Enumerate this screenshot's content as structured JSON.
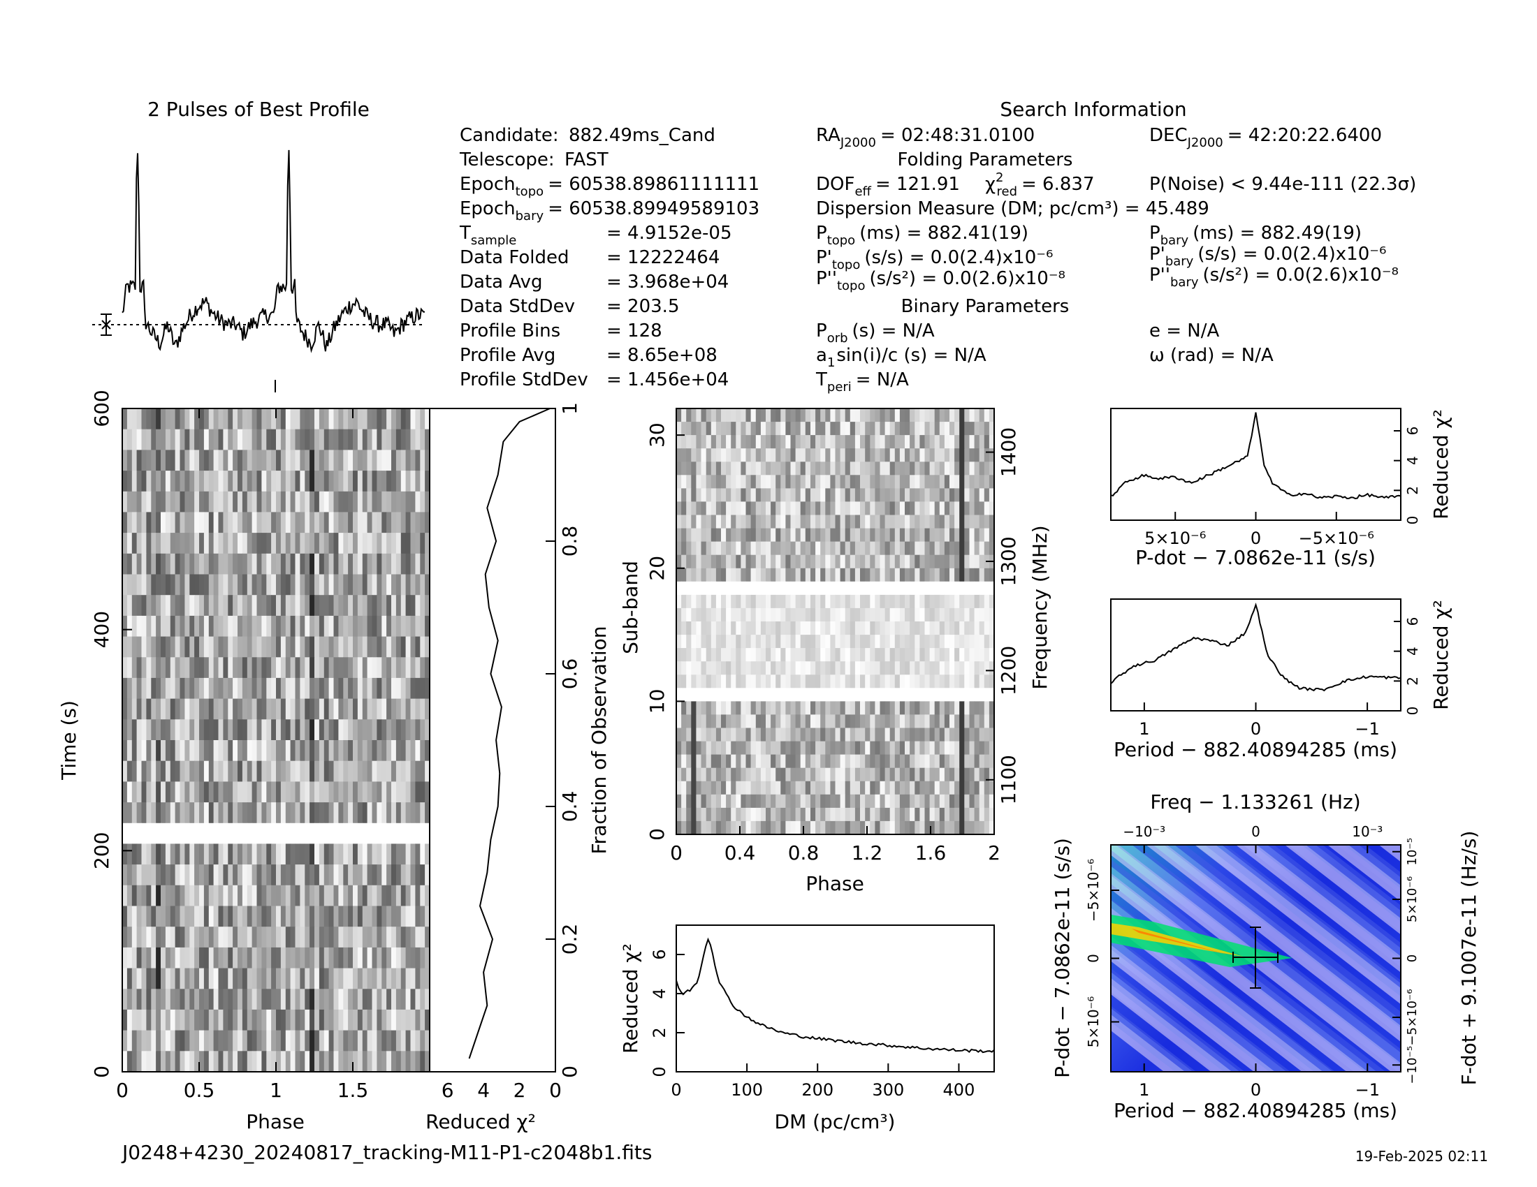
{
  "pulse_profile": {
    "title": "2 Pulses of Best Profile"
  },
  "search_info": {
    "title": "Search Information",
    "left_column": [
      {
        "label": "Candidate:",
        "value": "882.49ms_Cand"
      },
      {
        "label": "Telescope:",
        "value": "FAST"
      },
      {
        "label": "Epoch",
        "sub": "topo",
        "value": "= 60538.89861111111"
      },
      {
        "label": "Epoch",
        "sub": "bary",
        "value": "= 60538.89949589103"
      },
      {
        "label": "T",
        "sub": "sample",
        "value": "=   4.9152e-05"
      },
      {
        "label": "Data Folded",
        "value": "=   12222464"
      },
      {
        "label": "Data Avg",
        "value": "=   3.968e+04"
      },
      {
        "label": "Data StdDev",
        "value": "=   203.5"
      },
      {
        "label": "Profile Bins",
        "value": "=   128"
      },
      {
        "label": "Profile Avg",
        "value": "=   8.65e+08"
      },
      {
        "label": "Profile StdDev",
        "value": "=   1.456e+04"
      }
    ],
    "ra": {
      "label": "RA",
      "sub": "J2000",
      "value": "= 02:48:31.0100"
    },
    "dec": {
      "label": "DEC",
      "sub": "J2000",
      "value": "= 42:20:22.6400"
    },
    "folding_title": "Folding Parameters",
    "dof": {
      "label": "DOF",
      "sub": "eff",
      "value": "= 121.91"
    },
    "chi2": {
      "label": "χ",
      "sup": "2",
      "sub": "red",
      "value": "= 6.837"
    },
    "pnoise": "P(Noise) < 9.44e-111   (22.3σ)",
    "dm_line": "Dispersion Measure (DM; pc/cm³) = 45.489",
    "p_topo": {
      "label": "P",
      "sub": "topo",
      "value": "(ms)  =  882.41(19)"
    },
    "p_bary": {
      "label": "P",
      "sub": "bary",
      "value": "(ms) =  882.49(19)"
    },
    "pd_topo": {
      "label": "P'",
      "sub": "topo",
      "value": "(s/s) = 0.0(2.4)x10⁻⁶"
    },
    "pd_bary": {
      "label": "P'",
      "sub": "bary",
      "value": "(s/s) = 0.0(2.4)x10⁻⁶"
    },
    "pdd_topo": {
      "label": "P''",
      "sub": "topo",
      "value": "(s/s²) = 0.0(2.6)x10⁻⁸"
    },
    "pdd_bary": {
      "label": "P''",
      "sub": "bary",
      "value": "(s/s²) = 0.0(2.6)x10⁻⁸"
    },
    "binary_title": "Binary Parameters",
    "p_orb": {
      "label": "P",
      "sub": "orb",
      "value": "(s) = N/A"
    },
    "e_line": "e = N/A",
    "a1": {
      "label": "a",
      "sub": "1",
      "value": "sin(i)/c (s) = N/A"
    },
    "omega_line": "ω (rad) = N/A",
    "t_peri": {
      "label": "T",
      "sub": "peri",
      "value": "= N/A"
    }
  },
  "footer": {
    "filename": "J0248+4230_20240817_tracking-M11-P1-c2048b1.fits",
    "date": "19-Feb-2025 02:11"
  },
  "colors": {
    "line": "#000000",
    "bg": "#ffffff",
    "pdot_low": "#1c2fe0",
    "pdot_mid": "#8fa0f0",
    "pdot_high": "#00e070",
    "pdot_peak": "#ff8000"
  },
  "chart_data": [
    {
      "type": "line",
      "id": "pulse_profile",
      "title": "2 Pulses of Best Profile",
      "xlabel": "",
      "ylabel": "",
      "x": [
        0,
        0.05,
        0.1,
        0.15,
        0.2,
        0.25,
        0.3,
        0.35,
        0.4,
        0.45,
        0.5,
        0.55,
        0.6,
        0.65,
        0.7,
        0.75,
        0.8,
        0.85,
        0.9,
        0.95,
        1.0,
        1.05,
        1.1,
        1.15,
        1.2,
        1.25,
        1.3,
        1.35,
        1.4,
        1.45,
        1.5,
        1.55,
        1.6,
        1.65,
        1.7,
        1.75,
        1.8,
        1.85,
        1.9,
        1.95,
        2.0
      ],
      "values": [
        0.05,
        0.3,
        1.0,
        0.02,
        -0.05,
        -0.1,
        0.0,
        -0.12,
        -0.02,
        0.05,
        0.1,
        0.12,
        0.06,
        0.02,
        0.0,
        0.0,
        -0.05,
        0.0,
        0.03,
        0.05,
        0.05,
        0.3,
        1.0,
        0.02,
        -0.05,
        -0.1,
        0.0,
        -0.12,
        -0.02,
        0.05,
        0.1,
        0.12,
        0.06,
        0.02,
        0.0,
        0.0,
        -0.05,
        0.0,
        0.03,
        0.05,
        0.05
      ]
    },
    {
      "type": "heatmap",
      "id": "time_phase",
      "xlabel": "Phase",
      "ylabel": "Time (s)",
      "y2label": "Fraction of Observation",
      "xlim": [
        0,
        2
      ],
      "ylim": [
        0,
        600
      ],
      "xticks": [
        "0",
        "0.5",
        "1",
        "1.5"
      ],
      "yticks": [
        "0",
        "200",
        "400",
        "600"
      ],
      "y2ticks": [
        "0",
        "0.2",
        "0.4",
        "0.6",
        "0.8",
        "1"
      ]
    },
    {
      "type": "line",
      "id": "time_chi2",
      "xlabel": "Reduced χ²",
      "xlim": [
        7,
        0
      ],
      "xticks": [
        "6",
        "4",
        "2",
        "0"
      ],
      "x": [
        4.8,
        4.3,
        3.8,
        4.0,
        3.5,
        4.2,
        3.8,
        3.6,
        3.2,
        3.1,
        3.3,
        3.0,
        3.6,
        3.2,
        3.7,
        3.9,
        3.3,
        3.8,
        3.2,
        2.9,
        2.0,
        0.3
      ],
      "y": [
        0.02,
        0.06,
        0.1,
        0.15,
        0.2,
        0.25,
        0.3,
        0.35,
        0.4,
        0.45,
        0.5,
        0.55,
        0.6,
        0.65,
        0.7,
        0.75,
        0.8,
        0.85,
        0.9,
        0.95,
        0.98,
        1.0
      ]
    },
    {
      "type": "heatmap",
      "id": "subband_phase",
      "xlabel": "Phase",
      "ylabel": "Sub-band",
      "y2label": "Frequency (MHz)",
      "xlim": [
        0,
        2
      ],
      "ylim": [
        0,
        32
      ],
      "xticks": [
        "0",
        "0.4",
        "0.8",
        "1.2",
        "1.6",
        "2"
      ],
      "yticks": [
        "0",
        "10",
        "20",
        "30"
      ],
      "y2ticks": [
        "1100",
        "1200",
        "1300",
        "1400"
      ]
    },
    {
      "type": "line",
      "id": "dm_chi2",
      "xlabel": "DM (pc/cm³)",
      "ylabel": "Reduced χ²",
      "xlim": [
        0,
        450
      ],
      "ylim": [
        0,
        7.5
      ],
      "xticks": [
        "0",
        "100",
        "200",
        "300",
        "400"
      ],
      "yticks": [
        "0",
        "2",
        "4",
        "6"
      ],
      "x": [
        0,
        5,
        10,
        20,
        30,
        40,
        45,
        50,
        55,
        60,
        70,
        80,
        100,
        120,
        150,
        180,
        200,
        250,
        300,
        350,
        400,
        450
      ],
      "values": [
        4.7,
        4.1,
        4.0,
        4.2,
        4.6,
        6.2,
        6.8,
        6.4,
        5.4,
        4.7,
        4.0,
        3.4,
        2.8,
        2.4,
        2.0,
        1.8,
        1.7,
        1.5,
        1.35,
        1.2,
        1.1,
        1.05
      ]
    },
    {
      "type": "line",
      "id": "pdot_chi2",
      "xlabel": "P-dot − 7.0862e-11 (s/s)",
      "ylabel": "Reduced χ²",
      "xticks": [
        "5×10⁻⁶",
        "0",
        "−5×10⁻⁶"
      ],
      "yticks": [
        "0",
        "2",
        "4",
        "6"
      ],
      "ylim": [
        0,
        7.5
      ],
      "x": [
        9,
        8,
        7,
        6,
        5,
        4,
        3,
        2,
        1,
        0.5,
        0,
        -0.5,
        -1,
        -2,
        -3,
        -4,
        -5,
        -6,
        -7,
        -8,
        -9
      ],
      "values": [
        1.6,
        2.6,
        3.0,
        2.8,
        2.9,
        2.5,
        3.0,
        3.5,
        4.0,
        4.3,
        7.2,
        3.8,
        2.5,
        1.7,
        1.8,
        1.5,
        1.6,
        1.5,
        1.7,
        1.5,
        1.6
      ]
    },
    {
      "type": "line",
      "id": "period_chi2",
      "xlabel": "Period − 882.40894285 (ms)",
      "ylabel": "Reduced χ²",
      "xticks": [
        "1",
        "0",
        "−1"
      ],
      "yticks": [
        "0",
        "2",
        "4",
        "6"
      ],
      "ylim": [
        0,
        7.5
      ],
      "x": [
        1.3,
        1.1,
        0.9,
        0.7,
        0.55,
        0.4,
        0.25,
        0.1,
        0.05,
        0,
        -0.05,
        -0.1,
        -0.25,
        -0.4,
        -0.6,
        -0.8,
        -1.0,
        -1.3
      ],
      "values": [
        1.9,
        3.0,
        3.4,
        4.3,
        4.9,
        4.7,
        4.4,
        5.2,
        6.0,
        7.2,
        5.5,
        3.8,
        2.2,
        1.5,
        1.4,
        2.0,
        2.3,
        2.2
      ]
    },
    {
      "type": "heatmap",
      "id": "pdot_period",
      "title": "Freq − 1.133261 (Hz)",
      "xlabel": "Period − 882.40894285 (ms)",
      "ylabel": "P-dot − 7.0862e-11 (s/s)",
      "y2label": "F-dot + 9.1007e-11 (Hz/s)",
      "xticks": [
        "1",
        "0",
        "−1"
      ],
      "x2ticks": [
        "−10⁻³",
        "0",
        "10⁻³"
      ],
      "yticks": [
        "5×10⁻⁶",
        "0",
        "−5×10⁻⁶"
      ],
      "y2ticks": [
        "−10⁻⁵",
        "−5×10⁻⁶",
        "0",
        "5×10⁻⁶",
        "10⁻⁵"
      ]
    }
  ]
}
